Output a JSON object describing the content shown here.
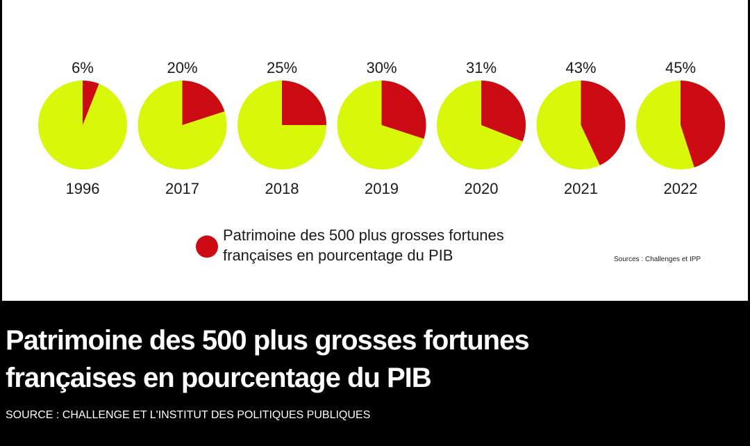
{
  "chart_data": {
    "type": "pie",
    "title": "",
    "categories": [
      "1996",
      "2017",
      "2018",
      "2019",
      "2020",
      "2021",
      "2022"
    ],
    "series": [
      {
        "name": "Patrimoine des 500 plus grosses fortunes françaises en pourcentage du PIB",
        "values": [
          6,
          20,
          25,
          30,
          31,
          43,
          45
        ]
      }
    ],
    "value_labels": [
      "6%",
      "20%",
      "25%",
      "30%",
      "31%",
      "43%",
      "45%"
    ],
    "unit": "%",
    "legend_placement": "bottom-center",
    "colors": {
      "share": "#cc0a14",
      "remainder": "#d8f70a"
    }
  },
  "legend": {
    "line1": "Patrimoine des 500 plus grosses fortunes",
    "line2": "françaises en pourcentage du PIB"
  },
  "sources_note": "Sources : Challenges et IPP",
  "headline": {
    "line1": "Patrimoine des 500 plus grosses fortunes",
    "line2": "françaises en pourcentage du PIB"
  },
  "source_line": "SOURCE : CHALLENGE ET L'INSTITUT DES POLITIQUES PUBLIQUES"
}
